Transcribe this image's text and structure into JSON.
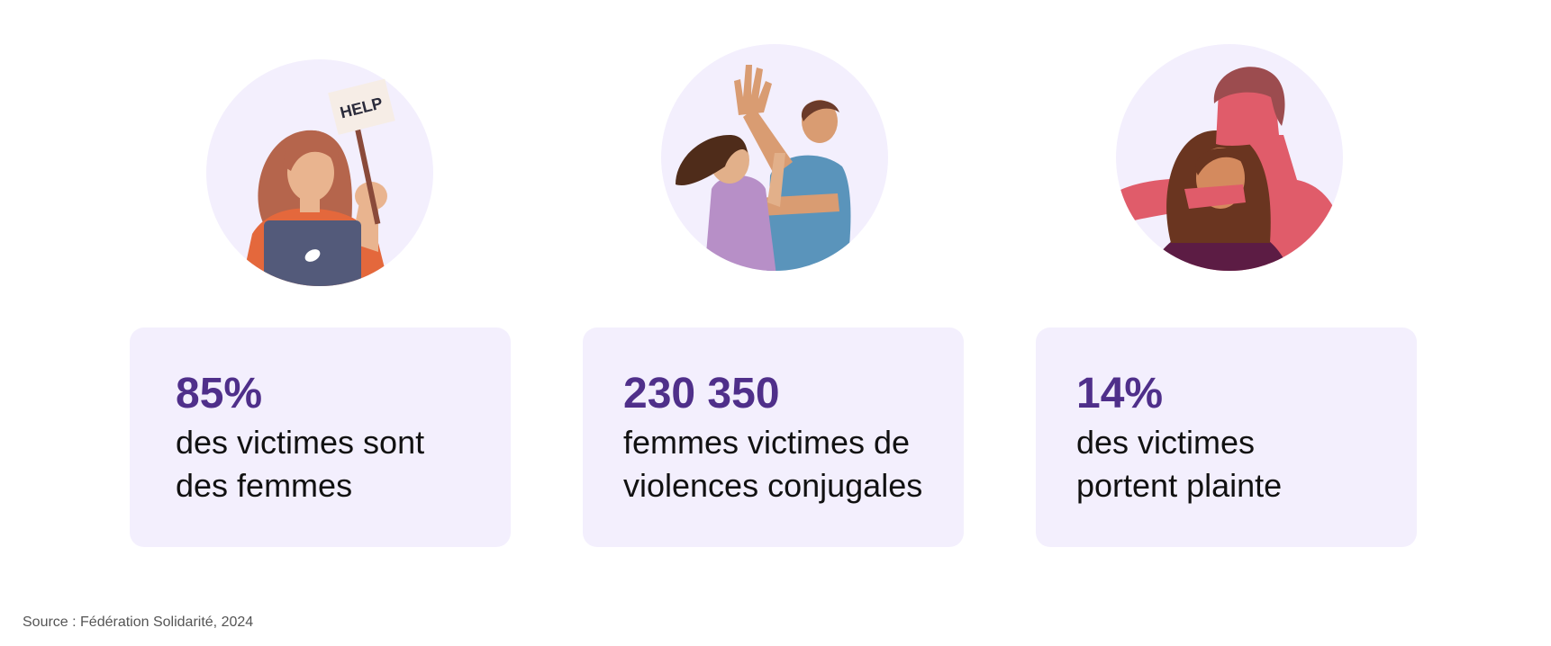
{
  "stats": [
    {
      "illustration": "woman-with-help-sign-laptop",
      "sign_text": "HELP",
      "number": "85%",
      "label_line1": "des victimes sont",
      "label_line2": "des femmes"
    },
    {
      "illustration": "couple-domestic-violence",
      "number": "230 350",
      "label_line1": "femmes victimes de",
      "label_line2": "violences conjugales"
    },
    {
      "illustration": "man-covering-woman-mouth",
      "number": "14%",
      "label_line1": "des victimes",
      "label_line2": "portent plainte"
    }
  ],
  "source": "Source : Fédération Solidarité, 2024",
  "colors": {
    "accent": "#4f2f8a",
    "card_bg": "#f3effd",
    "circle_bg": "#f3effd",
    "text": "#111111",
    "source_text": "#555555"
  }
}
